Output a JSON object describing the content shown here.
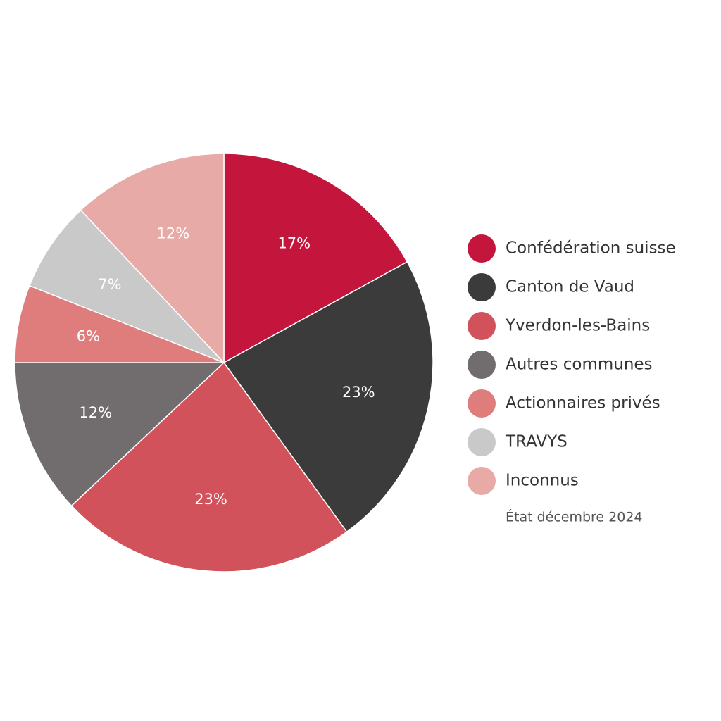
{
  "chart_data": {
    "type": "pie",
    "categories": [
      "Confédération suisse",
      "Canton de Vaud",
      "Yverdon-les-Bains",
      "Autres communes",
      "Actionnaires privés",
      "TRAVYS",
      "Inconnus"
    ],
    "values": [
      17,
      23,
      23,
      12,
      6,
      7,
      12
    ],
    "value_labels": [
      "17%",
      "23%",
      "23%",
      "12%",
      "6%",
      "7%",
      "12%"
    ],
    "colors": [
      "#c4163c",
      "#3c3b3c",
      "#d2525b",
      "#716c6e",
      "#df7d7d",
      "#c9c9c9",
      "#e8aaa7"
    ],
    "annotation": "État décembre 2024"
  }
}
